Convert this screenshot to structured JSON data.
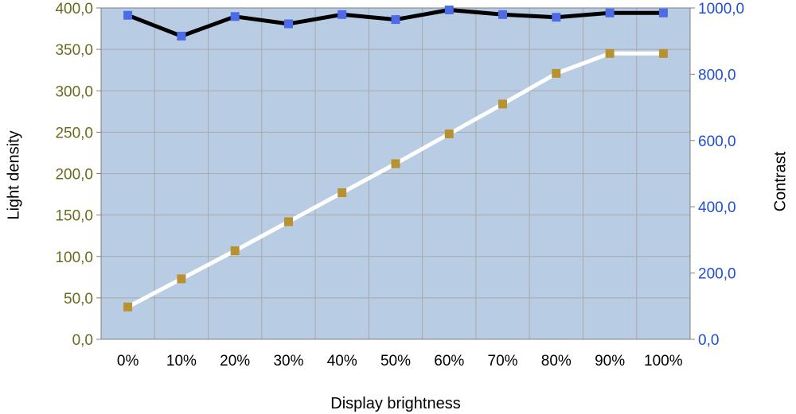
{
  "chart_data": {
    "type": "line",
    "title": "",
    "xlabel": "Display brightness",
    "ylabel_left": "Light density",
    "ylabel_right": "Contrast",
    "categories": [
      "0%",
      "10%",
      "20%",
      "30%",
      "40%",
      "50%",
      "60%",
      "70%",
      "80%",
      "90%",
      "100%"
    ],
    "left_axis": {
      "min": 0,
      "max": 400,
      "ticks": [
        "0,0",
        "50,0",
        "100,0",
        "150,0",
        "200,0",
        "250,0",
        "300,0",
        "350,0",
        "400,0"
      ],
      "color": "#6b6b1f"
    },
    "right_axis": {
      "min": 0,
      "max": 1000,
      "ticks": [
        "0,0",
        "200,0",
        "400,0",
        "600,0",
        "800,0",
        "1000,0"
      ],
      "color": "#1f4fd0"
    },
    "grid": true,
    "legend": "none",
    "series": [
      {
        "axis": "left",
        "values": [
          39,
          73,
          107,
          142,
          177,
          212,
          248,
          284,
          321,
          345,
          345
        ],
        "line_color": "#ffffff",
        "marker_color": "#b8922e"
      },
      {
        "axis": "right",
        "values": [
          978,
          915,
          974,
          952,
          980,
          965,
          994,
          980,
          972,
          985,
          985
        ],
        "line_color": "#000000",
        "marker_color": "#4d6be6"
      }
    ],
    "plot_background": "#b8cce4",
    "grid_color": "#a9a9a9"
  }
}
